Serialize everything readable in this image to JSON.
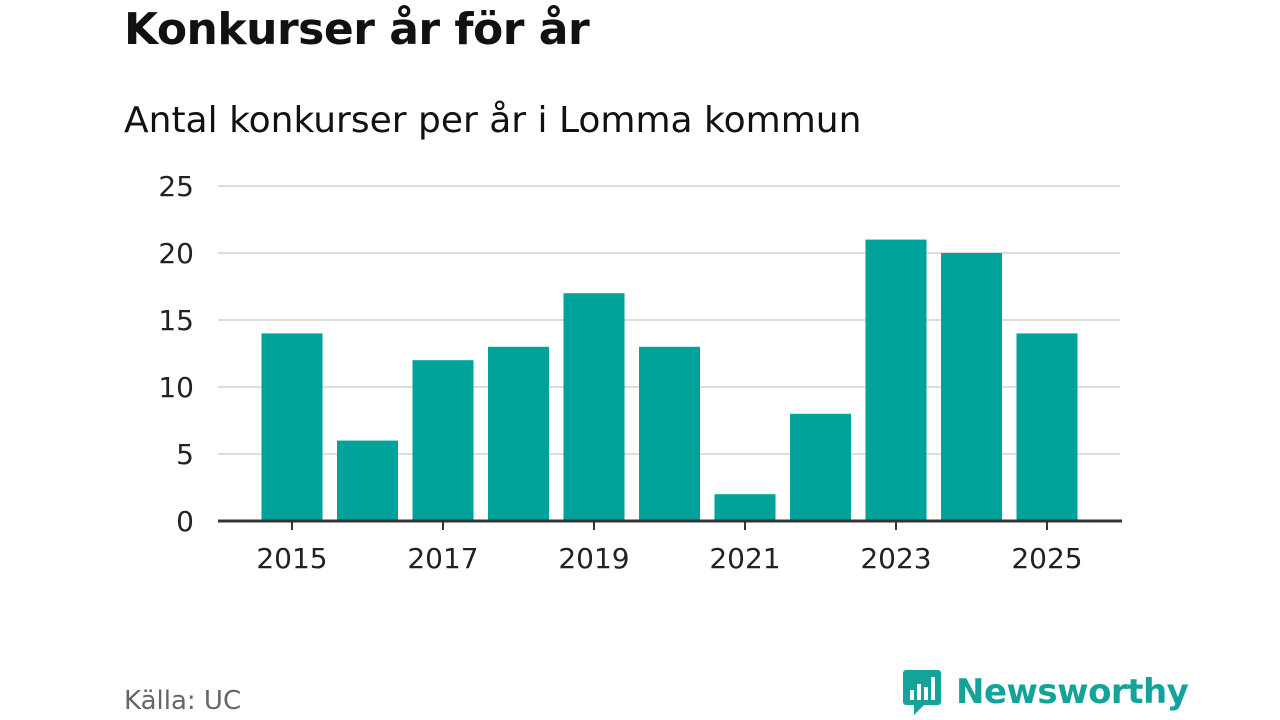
{
  "header": {
    "title": "Konkurser år för år",
    "subtitle": "Antal konkurser per år i Lomma kommun"
  },
  "footer": {
    "source": "Källa: UC",
    "brand": "Newsworthy"
  },
  "colors": {
    "bar": "#00a39a",
    "grid": "#dddddd",
    "axis": "#333333",
    "brand": "#14a39a"
  },
  "chart_data": {
    "type": "bar",
    "title": "Konkurser år för år",
    "subtitle": "Antal konkurser per år i Lomma kommun",
    "categories": [
      2015,
      2016,
      2017,
      2018,
      2019,
      2020,
      2021,
      2022,
      2023,
      2024,
      2025
    ],
    "values": [
      14,
      6,
      12,
      13,
      17,
      13,
      2,
      8,
      21,
      20,
      14
    ],
    "x_tick_labels": [
      "2015",
      "2017",
      "2019",
      "2021",
      "2023",
      "2025"
    ],
    "y_ticks": [
      0,
      5,
      10,
      15,
      20,
      25
    ],
    "ylim": [
      0,
      25
    ],
    "xlabel": "",
    "ylabel": "",
    "grid": true,
    "legend": "none"
  }
}
